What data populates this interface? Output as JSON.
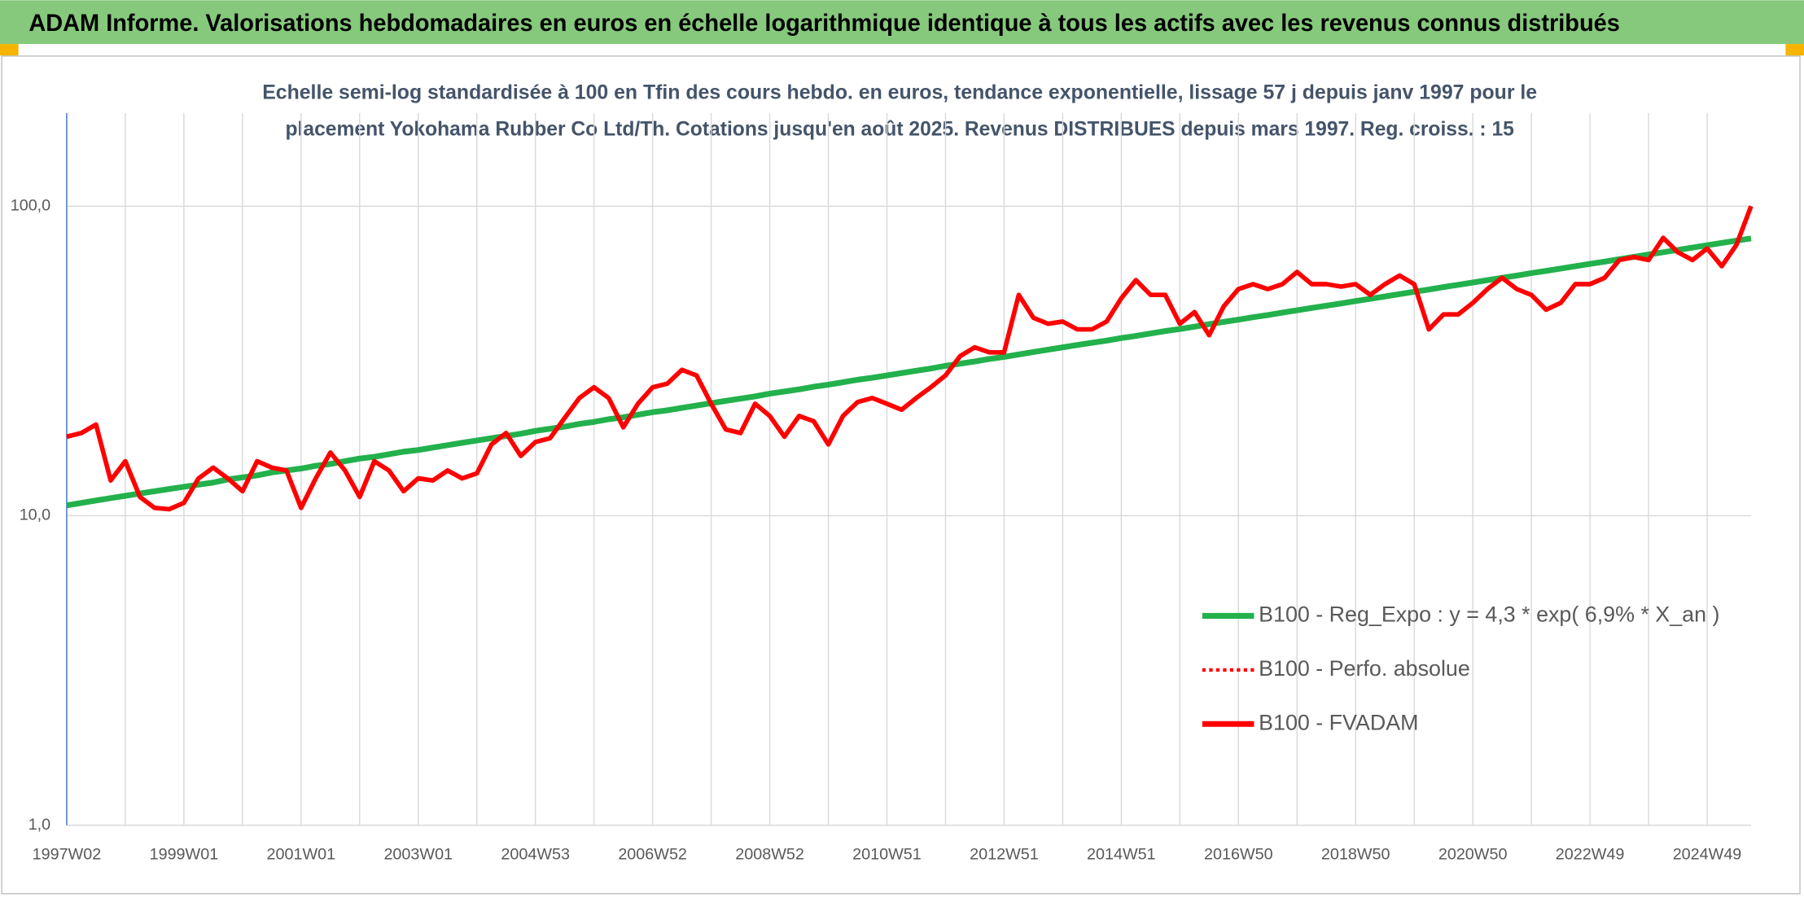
{
  "chart_data": {
    "type": "line",
    "title": "ADAM Informe. Valorisations hebdomadaires en euros en échelle logarithmique identique à tous les actifs avec les revenus connus distribués",
    "subtitle_lines": [
      "Echelle semi-log standardisée à 100 en Tfin des cours hebdo. en euros, tendance exponentielle, lissage 57 j depuis janv 1997 pour le",
      "placement Yokohama Rubber Co Ltd/Th. Cotations jusqu'en août 2025. Revenus DISTRIBUES depuis mars 1997. Reg. croiss. : 15"
    ],
    "categories": [
      "1997W02",
      null,
      null,
      null,
      null,
      null,
      null,
      null,
      "1999W01",
      null,
      null,
      null,
      null,
      null,
      null,
      null,
      "2001W01",
      null,
      null,
      null,
      null,
      null,
      null,
      null,
      "2003W01",
      null,
      null,
      null,
      null,
      null,
      null,
      null,
      "2004W53",
      null,
      null,
      null,
      null,
      null,
      null,
      null,
      "2006W52",
      null,
      null,
      null,
      null,
      null,
      null,
      null,
      "2008W52",
      null,
      null,
      null,
      null,
      null,
      null,
      null,
      "2010W51",
      null,
      null,
      null,
      null,
      null,
      null,
      null,
      "2012W51",
      null,
      null,
      null,
      null,
      null,
      null,
      null,
      "2014W51",
      null,
      null,
      null,
      null,
      null,
      null,
      null,
      "2016W50",
      null,
      null,
      null,
      null,
      null,
      null,
      null,
      "2018W50",
      null,
      null,
      null,
      null,
      null,
      null,
      null,
      "2020W50",
      null,
      null,
      null,
      null,
      null,
      null,
      null,
      "2022W49",
      null,
      null,
      null,
      null,
      null,
      null,
      null,
      "2024W49",
      null,
      null,
      null
    ],
    "series": [
      {
        "name": "B100 - Reg_Expo : y = 4,3 * exp( 6,9% *  X_an )",
        "color": "#22b14c",
        "style": "solid",
        "values": [
          10.8,
          11.0,
          11.2,
          11.4,
          11.6,
          11.8,
          12.0,
          12.2,
          12.4,
          12.6,
          12.8,
          13.1,
          13.3,
          13.5,
          13.8,
          14.0,
          14.2,
          14.5,
          14.7,
          15.0,
          15.3,
          15.5,
          15.8,
          16.1,
          16.3,
          16.6,
          16.9,
          17.2,
          17.5,
          17.8,
          18.1,
          18.4,
          18.8,
          19.1,
          19.4,
          19.8,
          20.1,
          20.5,
          20.8,
          21.2,
          21.6,
          21.9,
          22.3,
          22.7,
          23.1,
          23.5,
          23.9,
          24.3,
          24.8,
          25.2,
          25.6,
          26.1,
          26.5,
          27.0,
          27.5,
          27.9,
          28.4,
          28.9,
          29.4,
          29.9,
          30.5,
          31.0,
          31.5,
          32.1,
          32.6,
          33.2,
          33.8,
          34.4,
          35.0,
          35.6,
          36.2,
          36.8,
          37.5,
          38.1,
          38.8,
          39.5,
          40.1,
          40.8,
          41.6,
          42.3,
          43.0,
          43.8,
          44.5,
          45.3,
          46.1,
          46.9,
          47.7,
          48.5,
          49.4,
          50.2,
          51.1,
          52.0,
          52.9,
          53.8,
          54.8,
          55.7,
          56.7,
          57.7,
          58.7,
          59.7,
          60.8,
          61.8,
          62.9,
          64.0,
          65.1,
          66.2,
          67.4,
          68.6,
          69.8,
          71.0,
          72.2,
          73.5,
          74.8,
          76.1,
          77.4,
          78.7
        ]
      },
      {
        "name": "B100 - Perfo. absolue",
        "color": "#ff0000",
        "style": "dotted",
        "values": [
          18,
          18.5,
          19.7,
          13,
          15,
          11.5,
          10.6,
          10.5,
          11,
          13.2,
          14.3,
          13.2,
          12,
          15,
          14.3,
          14,
          10.6,
          13.2,
          16,
          14,
          11.5,
          15,
          14,
          12,
          13.2,
          13,
          14,
          13.2,
          13.7,
          17,
          18.5,
          15.6,
          17.3,
          17.8,
          20.7,
          24,
          26,
          24,
          19.3,
          23,
          26,
          26.7,
          29.6,
          28.4,
          23,
          19,
          18.5,
          23,
          21,
          18,
          21,
          20.2,
          17,
          21,
          23.3,
          24,
          23,
          22,
          24,
          26,
          28.4,
          32.8,
          35,
          33.7,
          33.7,
          51.7,
          43.6,
          41.7,
          42.4,
          40,
          40,
          42.4,
          50.4,
          57.7,
          51.7,
          51.7,
          41.7,
          45.5,
          38.3,
          47.5,
          54,
          56,
          54,
          56,
          61.3,
          56,
          56,
          55,
          56,
          51.7,
          56,
          59.7,
          56,
          40,
          44.7,
          44.7,
          48.7,
          54,
          58.7,
          54,
          51.7,
          46.3,
          48.7,
          56,
          56,
          58.7,
          67,
          68.5,
          67,
          79,
          71,
          67,
          73,
          64,
          75,
          100
        ]
      },
      {
        "name": "B100 - FVADAM",
        "color": "#ff0000",
        "style": "solid",
        "values": [
          18,
          18.5,
          19.7,
          13,
          15,
          11.5,
          10.6,
          10.5,
          11,
          13.2,
          14.3,
          13.2,
          12,
          15,
          14.3,
          14,
          10.6,
          13.2,
          16,
          14,
          11.5,
          15,
          14,
          12,
          13.2,
          13,
          14,
          13.2,
          13.7,
          17,
          18.5,
          15.6,
          17.3,
          17.8,
          20.7,
          24,
          26,
          24,
          19.3,
          23,
          26,
          26.7,
          29.6,
          28.4,
          23,
          19,
          18.5,
          23,
          21,
          18,
          21,
          20.2,
          17,
          21,
          23.3,
          24,
          23,
          22,
          24,
          26,
          28.4,
          32.8,
          35,
          33.7,
          33.7,
          51.7,
          43.6,
          41.7,
          42.4,
          40,
          40,
          42.4,
          50.4,
          57.7,
          51.7,
          51.7,
          41.7,
          45.5,
          38.3,
          47.5,
          54,
          56,
          54,
          56,
          61.3,
          56,
          56,
          55,
          56,
          51.7,
          56,
          59.7,
          56,
          40,
          44.7,
          44.7,
          48.7,
          54,
          58.7,
          54,
          51.7,
          46.3,
          48.7,
          56,
          56,
          58.7,
          67,
          68.5,
          67,
          79,
          71,
          67,
          73,
          64,
          75,
          100
        ]
      }
    ],
    "ylim": [
      1,
      200
    ],
    "yticks": [
      {
        "value": 1,
        "label": "1,0"
      },
      {
        "value": 10,
        "label": "10,0"
      },
      {
        "value": 100,
        "label": "100,0"
      }
    ],
    "log_scale": true,
    "grid": true,
    "legend": "lower right"
  }
}
